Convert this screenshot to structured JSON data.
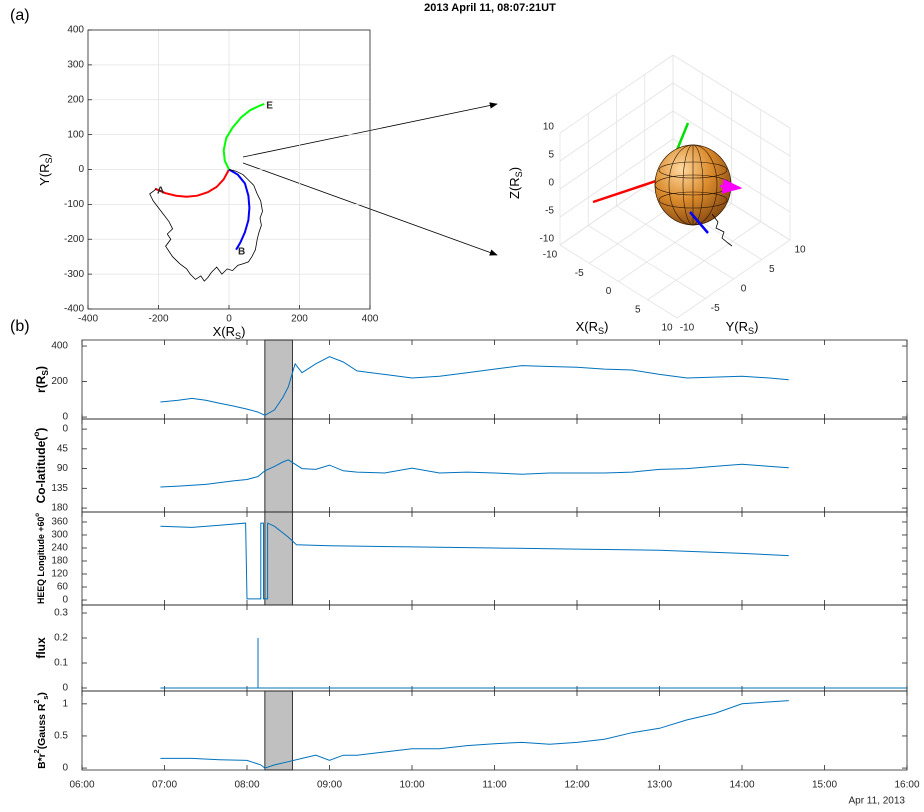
{
  "title": "2013 April 11, 08:07:21UT",
  "panel_labels": [
    "(a)",
    "(b)"
  ],
  "date_label": "Apr 11, 2013",
  "chart_data": [
    {
      "type": "line",
      "xlabel": [
        {
          "text": "X(R"
        },
        {
          "text": "S",
          "script": "sub"
        },
        {
          "text": ")"
        }
      ],
      "ylabel": [
        {
          "text": "Y(R"
        },
        {
          "text": "S",
          "script": "sub"
        },
        {
          "text": ")"
        }
      ],
      "xlim": [
        -400,
        400
      ],
      "ylim": [
        -400,
        400
      ],
      "xticks": [
        -400,
        -200,
        0,
        200,
        400
      ],
      "yticks": [
        -400,
        -300,
        -200,
        -100,
        0,
        100,
        200,
        300,
        400
      ],
      "grid": true,
      "series": [
        {
          "name": "A",
          "color": "#ff0000",
          "x": [
            -210,
            -180,
            -150,
            -120,
            -90,
            -60,
            -35,
            -15,
            0
          ],
          "values": [
            -55,
            -68,
            -75,
            -78,
            -75,
            -65,
            -50,
            -28,
            0
          ]
        },
        {
          "name": "B",
          "color": "#0000ff",
          "x": [
            0,
            25,
            45,
            55,
            58,
            55,
            45,
            32,
            20
          ],
          "values": [
            0,
            -15,
            -40,
            -75,
            -110,
            -145,
            -180,
            -210,
            -230
          ]
        },
        {
          "name": "E",
          "color": "#00ff00",
          "x": [
            0,
            -12,
            -15,
            -8,
            10,
            35,
            60,
            85,
            100
          ],
          "values": [
            0,
            25,
            55,
            90,
            120,
            150,
            170,
            182,
            188
          ]
        },
        {
          "color": "#000000",
          "x": [
            0,
            20,
            40,
            55,
            70,
            80,
            90,
            95,
            88,
            92,
            85,
            80,
            75,
            65,
            55,
            40,
            25,
            10,
            -5,
            -20,
            -35,
            -50,
            -60,
            -70,
            -80,
            -95,
            -110,
            -120,
            -140,
            -160,
            -170,
            -180,
            -165,
            -175,
            -160,
            -170,
            -185,
            -200,
            -215,
            -225,
            -205
          ],
          "values": [
            0,
            -5,
            -15,
            -30,
            -45,
            -70,
            -90,
            -120,
            -140,
            -160,
            -180,
            -200,
            -230,
            -250,
            -265,
            -270,
            -275,
            -290,
            -285,
            -300,
            -280,
            -295,
            -310,
            -320,
            -305,
            -315,
            -300,
            -285,
            -270,
            -250,
            -235,
            -220,
            -200,
            -185,
            -170,
            -150,
            -130,
            -110,
            -90,
            -70,
            -55
          ]
        }
      ]
    },
    {
      "type": "3d",
      "xlabel": [
        {
          "text": "X(R"
        },
        {
          "text": "S",
          "script": "sub"
        },
        {
          "text": ")"
        }
      ],
      "ylabel": [
        {
          "text": "Y(R"
        },
        {
          "text": "S",
          "script": "sub"
        },
        {
          "text": ")"
        }
      ],
      "zlabel": [
        {
          "text": "Z(R"
        },
        {
          "text": "S",
          "script": "sub"
        },
        {
          "text": ")"
        }
      ],
      "xlim": [
        -10,
        10
      ],
      "ylim": [
        -10,
        10
      ],
      "zlim": [
        -10,
        10
      ],
      "xticks": [
        -10,
        -5,
        0,
        5,
        10
      ],
      "yticks": [
        -10,
        -5,
        0,
        5,
        10
      ],
      "zticks": [
        -10,
        -5,
        0,
        5,
        10
      ],
      "grid": true
    },
    {
      "type": "line",
      "color": "#0072bd",
      "ylabel": [
        {
          "text": "r(R"
        },
        {
          "text": "S",
          "script": "sub"
        },
        {
          "text": ")"
        }
      ],
      "xlim": [
        "06:00",
        "16:00"
      ],
      "ylim": [
        -11,
        434
      ],
      "yticks": [
        0,
        200,
        400
      ],
      "highlight": [
        "08:13",
        "08:33"
      ],
      "x": [
        "06:57",
        "07:10",
        "07:20",
        "07:30",
        "07:40",
        "07:50",
        "08:00",
        "08:08",
        "08:13",
        "08:20",
        "08:26",
        "08:30",
        "08:35",
        "08:40",
        "08:50",
        "09:00",
        "09:10",
        "09:20",
        "09:40",
        "10:00",
        "10:20",
        "10:40",
        "11:00",
        "11:20",
        "11:40",
        "12:00",
        "12:20",
        "12:40",
        "13:00",
        "13:20",
        "13:40",
        "14:00",
        "14:20",
        "14:34"
      ],
      "values": [
        85,
        95,
        105,
        95,
        78,
        62,
        45,
        28,
        10,
        40,
        110,
        170,
        300,
        250,
        300,
        340,
        310,
        260,
        240,
        220,
        230,
        250,
        270,
        290,
        285,
        280,
        270,
        265,
        240,
        220,
        225,
        230,
        220,
        210
      ]
    },
    {
      "type": "line",
      "color": "#0072bd",
      "ylabel": [
        {
          "text": "Co-latitude("
        },
        {
          "text": "o",
          "script": "sup"
        },
        {
          "text": ")"
        }
      ],
      "xlim": [
        "06:00",
        "16:00"
      ],
      "ylim": [
        189,
        -23
      ],
      "yticks": [
        0,
        45,
        90,
        135,
        180
      ],
      "highlight": [
        "08:13",
        "08:33"
      ],
      "x": [
        "06:57",
        "07:10",
        "07:20",
        "07:30",
        "07:40",
        "07:50",
        "08:00",
        "08:08",
        "08:13",
        "08:20",
        "08:26",
        "08:30",
        "08:35",
        "08:40",
        "08:50",
        "09:00",
        "09:10",
        "09:20",
        "09:40",
        "10:00",
        "10:20",
        "10:40",
        "11:00",
        "11:20",
        "11:40",
        "12:00",
        "12:20",
        "12:40",
        "13:00",
        "13:20",
        "13:40",
        "14:00",
        "14:20",
        "14:34"
      ],
      "values": [
        132,
        130,
        128,
        126,
        122,
        118,
        115,
        108,
        95,
        85,
        75,
        70,
        80,
        90,
        92,
        82,
        95,
        98,
        100,
        89,
        100,
        98,
        100,
        103,
        100,
        100,
        100,
        98,
        92,
        90,
        85,
        80,
        85,
        88
      ]
    },
    {
      "type": "line",
      "color": "#0072bd",
      "ylabel": [
        {
          "text": "HEEQ Longitude +60"
        },
        {
          "text": "o",
          "script": "sup"
        }
      ],
      "xlim": [
        "06:00",
        "16:00"
      ],
      "ylim": [
        -23,
        406
      ],
      "yticks": [
        0,
        60,
        120,
        180,
        240,
        300,
        360
      ],
      "highlight": [
        "08:13",
        "08:33"
      ],
      "x": [
        "06:57",
        "07:20",
        "07:40",
        "07:59",
        "08:00",
        "08:10",
        "08:10",
        "08:12",
        "08:12",
        "08:15",
        "08:15",
        "08:20",
        "08:30",
        "08:36",
        "09:00",
        "10:00",
        "11:00",
        "12:00",
        "13:00",
        "14:00",
        "14:34"
      ],
      "values": [
        340,
        335,
        345,
        355,
        5,
        5,
        355,
        355,
        5,
        5,
        355,
        340,
        290,
        255,
        250,
        245,
        240,
        235,
        230,
        215,
        205
      ]
    },
    {
      "type": "line",
      "color": "#0072bd",
      "ylabel": [
        {
          "text": "flux"
        }
      ],
      "xlim": [
        "06:00",
        "16:00"
      ],
      "ylim": [
        -0.012,
        0.332
      ],
      "yticks": [
        0,
        0.1,
        0.2,
        0.3
      ],
      "x": [
        "06:57",
        "08:08",
        "08:08",
        "08:08",
        "16:00"
      ],
      "values": [
        0,
        0,
        0.2,
        0,
        0
      ]
    },
    {
      "type": "line",
      "color": "#0072bd",
      "ylabel": [
        {
          "text": "B*r"
        },
        {
          "text": "2",
          "script": "sup"
        },
        {
          "text": "(Gauss R"
        },
        {
          "text": "2",
          "script": "sup"
        },
        {
          "text": "s",
          "script": "sub"
        },
        {
          "text": ")"
        }
      ],
      "xlim": [
        "06:00",
        "16:00"
      ],
      "ylim": [
        -0.03,
        1.2
      ],
      "yticks": [
        0,
        0.5,
        1
      ],
      "highlight": [
        "08:13",
        "08:33"
      ],
      "xticks": [
        "06:00",
        "07:00",
        "08:00",
        "09:00",
        "10:00",
        "11:00",
        "12:00",
        "13:00",
        "14:00",
        "15:00",
        "16:00"
      ],
      "x": [
        "06:57",
        "07:20",
        "07:40",
        "08:00",
        "08:10",
        "08:13",
        "08:20",
        "08:30",
        "08:40",
        "08:50",
        "09:00",
        "09:10",
        "09:20",
        "09:40",
        "10:00",
        "10:20",
        "10:40",
        "11:00",
        "11:20",
        "11:40",
        "12:00",
        "12:20",
        "12:40",
        "13:00",
        "13:20",
        "13:40",
        "14:00",
        "14:20",
        "14:34"
      ],
      "values": [
        0.15,
        0.15,
        0.13,
        0.12,
        0.05,
        0,
        0.05,
        0.1,
        0.15,
        0.2,
        0.12,
        0.2,
        0.2,
        0.25,
        0.3,
        0.3,
        0.35,
        0.38,
        0.4,
        0.37,
        0.4,
        0.45,
        0.55,
        0.62,
        0.75,
        0.85,
        1,
        1.03,
        1.05
      ]
    }
  ]
}
